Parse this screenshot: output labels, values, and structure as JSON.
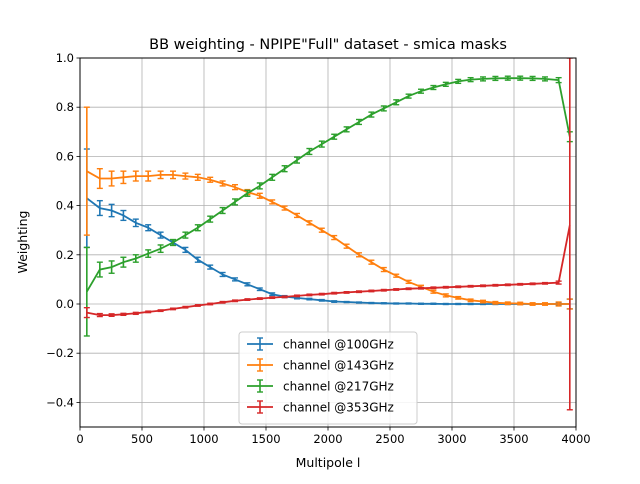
{
  "chart_data": {
    "type": "line",
    "title": "BB weighting - NPIPE\"Full\" dataset - smica masks",
    "xlabel": "Multipole l",
    "ylabel": "Weighting",
    "xlim": [
      0,
      4000
    ],
    "ylim": [
      -0.5,
      1.0
    ],
    "xticks": [
      0,
      500,
      1000,
      1500,
      2000,
      2500,
      3000,
      3500,
      4000
    ],
    "xtick_labels": [
      "0",
      "500",
      "1000",
      "1500",
      "2000",
      "2500",
      "3000",
      "3500",
      "4000"
    ],
    "yticks": [
      -0.4,
      -0.2,
      0.0,
      0.2,
      0.4,
      0.6,
      0.8,
      1.0
    ],
    "ytick_labels": [
      "−0.4",
      "−0.2",
      "0.0",
      "0.2",
      "0.4",
      "0.6",
      "0.8",
      "1.0"
    ],
    "grid": true,
    "legend_position": "bottom-center",
    "error_bars": true,
    "x": [
      55,
      160,
      255,
      350,
      450,
      550,
      650,
      750,
      850,
      950,
      1050,
      1150,
      1250,
      1350,
      1450,
      1550,
      1650,
      1750,
      1850,
      1950,
      2050,
      2150,
      2250,
      2350,
      2450,
      2550,
      2650,
      2750,
      2850,
      2950,
      3050,
      3150,
      3250,
      3350,
      3450,
      3550,
      3650,
      3750,
      3860,
      3950
    ],
    "series": [
      {
        "name": "channel @100GHz",
        "color": "#1f77b4",
        "values": [
          0.43,
          0.39,
          0.38,
          0.36,
          0.33,
          0.31,
          0.28,
          0.25,
          0.22,
          0.18,
          0.15,
          0.12,
          0.1,
          0.08,
          0.06,
          0.04,
          0.03,
          0.025,
          0.02,
          0.015,
          0.01,
          0.008,
          0.006,
          0.004,
          0.003,
          0.002,
          0.002,
          0.001,
          0.001,
          0.0,
          0.0,
          0.0,
          0.0,
          0.0,
          0.0,
          0.0,
          0.0,
          0.0,
          0.0,
          0.0
        ],
        "errors": [
          0.2,
          0.03,
          0.025,
          0.02,
          0.015,
          0.012,
          0.012,
          0.01,
          0.01,
          0.01,
          0.008,
          0.008,
          0.006,
          0.006,
          0.005,
          0.005,
          0.004,
          0.004,
          0.003,
          0.003,
          0.003,
          0.002,
          0.002,
          0.002,
          0.002,
          0.002,
          0.002,
          0.002,
          0.002,
          0.002,
          0.002,
          0.002,
          0.002,
          0.002,
          0.002,
          0.002,
          0.002,
          0.002,
          0.004,
          0.02
        ]
      },
      {
        "name": "channel @143GHz",
        "color": "#ff7f0e",
        "values": [
          0.54,
          0.51,
          0.51,
          0.515,
          0.52,
          0.52,
          0.525,
          0.525,
          0.52,
          0.515,
          0.505,
          0.49,
          0.475,
          0.455,
          0.44,
          0.415,
          0.39,
          0.36,
          0.33,
          0.3,
          0.27,
          0.235,
          0.2,
          0.17,
          0.14,
          0.115,
          0.09,
          0.07,
          0.05,
          0.035,
          0.025,
          0.015,
          0.01,
          0.005,
          0.003,
          0.002,
          0.0,
          0.0,
          0.0,
          0.0
        ],
        "errors": [
          0.26,
          0.04,
          0.03,
          0.025,
          0.02,
          0.02,
          0.015,
          0.015,
          0.012,
          0.012,
          0.01,
          0.01,
          0.01,
          0.01,
          0.01,
          0.008,
          0.008,
          0.008,
          0.008,
          0.008,
          0.008,
          0.008,
          0.008,
          0.008,
          0.008,
          0.006,
          0.006,
          0.006,
          0.006,
          0.006,
          0.005,
          0.005,
          0.005,
          0.005,
          0.005,
          0.005,
          0.005,
          0.005,
          0.008,
          0.02
        ]
      },
      {
        "name": "channel @217GHz",
        "color": "#2ca02c",
        "values": [
          0.05,
          0.14,
          0.15,
          0.17,
          0.185,
          0.205,
          0.225,
          0.25,
          0.28,
          0.31,
          0.345,
          0.38,
          0.415,
          0.45,
          0.48,
          0.515,
          0.55,
          0.585,
          0.62,
          0.65,
          0.68,
          0.71,
          0.74,
          0.77,
          0.795,
          0.82,
          0.845,
          0.865,
          0.88,
          0.893,
          0.905,
          0.912,
          0.915,
          0.917,
          0.918,
          0.918,
          0.917,
          0.915,
          0.91,
          0.68
        ],
        "errors": [
          0.18,
          0.03,
          0.025,
          0.02,
          0.015,
          0.015,
          0.015,
          0.012,
          0.012,
          0.012,
          0.012,
          0.012,
          0.012,
          0.012,
          0.012,
          0.012,
          0.012,
          0.012,
          0.012,
          0.012,
          0.01,
          0.01,
          0.01,
          0.01,
          0.01,
          0.01,
          0.008,
          0.008,
          0.008,
          0.008,
          0.008,
          0.008,
          0.008,
          0.008,
          0.008,
          0.008,
          0.008,
          0.008,
          0.01,
          0.02
        ]
      },
      {
        "name": "channel @353GHz",
        "color": "#d62728",
        "values": [
          -0.035,
          -0.045,
          -0.045,
          -0.042,
          -0.038,
          -0.032,
          -0.027,
          -0.02,
          -0.013,
          -0.006,
          0.0,
          0.007,
          0.013,
          0.018,
          0.022,
          0.026,
          0.029,
          0.033,
          0.037,
          0.04,
          0.044,
          0.047,
          0.05,
          0.053,
          0.056,
          0.059,
          0.062,
          0.064,
          0.066,
          0.068,
          0.07,
          0.072,
          0.074,
          0.076,
          0.078,
          0.08,
          0.082,
          0.084,
          0.087,
          0.32
        ],
        "errors": [
          0.02,
          0.006,
          0.005,
          0.004,
          0.004,
          0.003,
          0.003,
          0.003,
          0.003,
          0.003,
          0.003,
          0.003,
          0.003,
          0.003,
          0.003,
          0.003,
          0.003,
          0.003,
          0.003,
          0.003,
          0.003,
          0.003,
          0.003,
          0.003,
          0.003,
          0.003,
          0.003,
          0.003,
          0.003,
          0.003,
          0.003,
          0.003,
          0.003,
          0.003,
          0.003,
          0.003,
          0.003,
          0.003,
          0.006,
          0.75
        ]
      }
    ]
  }
}
